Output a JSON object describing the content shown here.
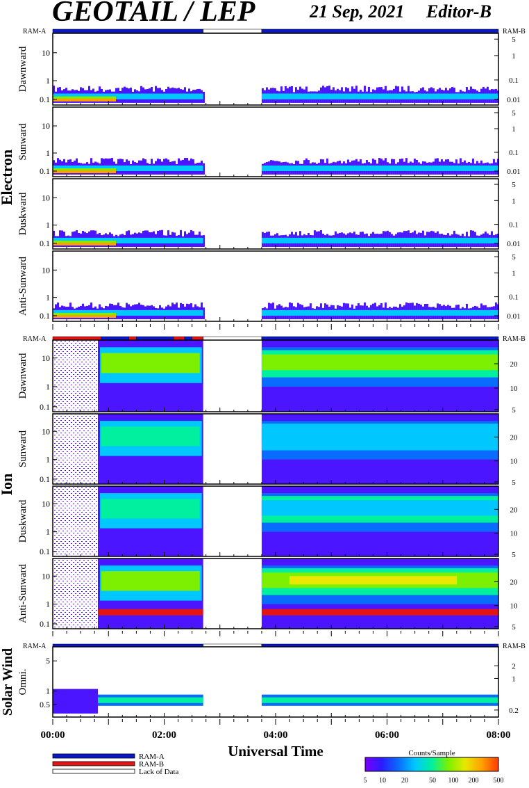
{
  "header": {
    "title": "GEOTAIL / LEP",
    "date": "21 Sep, 2021",
    "editor": "Editor-B"
  },
  "colors": {
    "ram_a": "#0b18c8",
    "ram_b": "#e31414",
    "lack": "#ffffff",
    "colorbar": [
      "#7a00ff",
      "#2a1cff",
      "#0a6cff",
      "#00c8ff",
      "#00f0a0",
      "#7cf000",
      "#e8e800",
      "#ffa000",
      "#ff3a00"
    ]
  },
  "chart_data": {
    "type": "heatmap",
    "x_axis": {
      "label": "Universal Time",
      "range": [
        "00:00",
        "08:00"
      ],
      "ticks": [
        "00:00",
        "02:00",
        "04:00",
        "06:00",
        "08:00"
      ],
      "data_gap": [
        "02:42",
        "03:45"
      ]
    },
    "groups": [
      {
        "name": "Electron",
        "ram_bar_labels": {
          "left": "RAM-A",
          "right": "RAM-B"
        },
        "ram_bar": [
          {
            "from": "00:00",
            "to": "02:42",
            "mode": "RAM-A"
          },
          {
            "from": "02:42",
            "to": "03:45",
            "mode": "Lack of Data"
          },
          {
            "from": "03:45",
            "to": "08:00",
            "mode": "RAM-A"
          }
        ],
        "left_ticks": [
          "10",
          "1",
          "0.1"
        ],
        "right_ticks": [
          "5",
          "1",
          "0.1",
          "0.01"
        ],
        "panels": [
          {
            "name": "Dawnward"
          },
          {
            "name": "Sunward"
          },
          {
            "name": "Duskward"
          },
          {
            "name": "Anti-Sunward"
          }
        ]
      },
      {
        "name": "Ion",
        "ram_bar_labels": {
          "left": "RAM-A",
          "right": "RAM-B"
        },
        "ram_bar": [
          {
            "from": "00:00",
            "to": "00:52",
            "mode": "RAM-B"
          },
          {
            "from": "00:52",
            "to": "01:22",
            "mode": "RAM-A"
          },
          {
            "from": "01:22",
            "to": "01:30",
            "mode": "RAM-B"
          },
          {
            "from": "01:30",
            "to": "02:10",
            "mode": "RAM-A"
          },
          {
            "from": "02:10",
            "to": "02:22",
            "mode": "RAM-B"
          },
          {
            "from": "02:22",
            "to": "02:30",
            "mode": "RAM-A"
          },
          {
            "from": "02:30",
            "to": "02:42",
            "mode": "RAM-B"
          },
          {
            "from": "02:42",
            "to": "03:45",
            "mode": "Lack of Data"
          },
          {
            "from": "03:45",
            "to": "08:00",
            "mode": "RAM-A"
          }
        ],
        "left_ticks": [
          "10",
          "1",
          "0.1"
        ],
        "right_ticks": [
          "20",
          "10",
          "5"
        ],
        "panels": [
          {
            "name": "Dawnward"
          },
          {
            "name": "Sunward"
          },
          {
            "name": "Duskward"
          },
          {
            "name": "Anti-Sunward"
          }
        ]
      },
      {
        "name": "Solar Wind",
        "ram_bar_labels": {
          "left": "RAM-A",
          "right": "RAM-B"
        },
        "ram_bar": [
          {
            "from": "00:00",
            "to": "02:42",
            "mode": "RAM-A"
          },
          {
            "from": "02:42",
            "to": "03:45",
            "mode": "Lack of Data"
          },
          {
            "from": "03:45",
            "to": "08:00",
            "mode": "RAM-A"
          }
        ],
        "left_ticks": [
          "5",
          "1",
          "0.5"
        ],
        "right_ticks": [
          "2",
          "1",
          "0.2"
        ],
        "panels": [
          {
            "name": "Omni."
          }
        ]
      }
    ],
    "legend": [
      {
        "label": "RAM-A",
        "color": "#0b18c8"
      },
      {
        "label": "RAM-B",
        "color": "#e31414"
      },
      {
        "label": "Lack of Data",
        "color": "#ffffff"
      }
    ],
    "colorbar": {
      "title": "Counts/Sample",
      "ticks": [
        "5",
        "10",
        "20",
        "50",
        "100",
        "200",
        "500"
      ]
    }
  }
}
